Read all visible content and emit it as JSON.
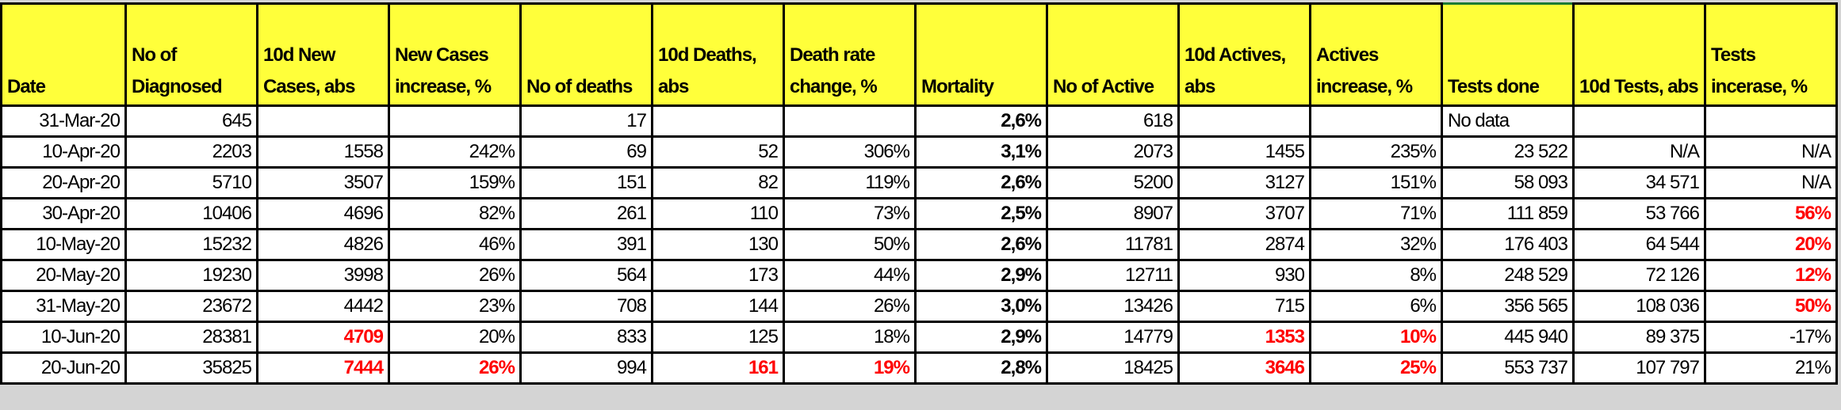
{
  "headers": [
    "Date",
    "No of Diagnosed",
    "10d New Cases, abs",
    "New Cases increase, %",
    "No of deaths",
    "10d Deaths, abs",
    "Death rate change, %",
    "Mortality",
    "No of Active",
    "10d Actives, abs",
    "Actives increase, %",
    "Tests done",
    "10d Tests, abs",
    "Tests incerase, %"
  ],
  "colors": {
    "header_bg": "#ffff3a",
    "highlight_red": "#ff0000",
    "selected_cell_border": "#1e7b34"
  },
  "rows": [
    {
      "cells": [
        "31-Mar-20",
        "645",
        "",
        "",
        "17",
        "",
        "",
        "2,6%",
        "618",
        "",
        "",
        "No data",
        "",
        ""
      ],
      "red": []
    },
    {
      "cells": [
        "10-Apr-20",
        "2203",
        "1558",
        "242%",
        "69",
        "52",
        "306%",
        "3,1%",
        "2073",
        "1455",
        "235%",
        "23 522",
        "N/A",
        "N/A"
      ],
      "red": []
    },
    {
      "cells": [
        "20-Apr-20",
        "5710",
        "3507",
        "159%",
        "151",
        "82",
        "119%",
        "2,6%",
        "5200",
        "3127",
        "151%",
        "58 093",
        "34 571",
        "N/A"
      ],
      "red": []
    },
    {
      "cells": [
        "30-Apr-20",
        "10406",
        "4696",
        "82%",
        "261",
        "110",
        "73%",
        "2,5%",
        "8907",
        "3707",
        "71%",
        "111 859",
        "53 766",
        "56%"
      ],
      "red": [
        13
      ]
    },
    {
      "cells": [
        "10-May-20",
        "15232",
        "4826",
        "46%",
        "391",
        "130",
        "50%",
        "2,6%",
        "11781",
        "2874",
        "32%",
        "176 403",
        "64 544",
        "20%"
      ],
      "red": [
        13
      ]
    },
    {
      "cells": [
        "20-May-20",
        "19230",
        "3998",
        "26%",
        "564",
        "173",
        "44%",
        "2,9%",
        "12711",
        "930",
        "8%",
        "248 529",
        "72 126",
        "12%"
      ],
      "red": [
        13
      ]
    },
    {
      "cells": [
        "31-May-20",
        "23672",
        "4442",
        "23%",
        "708",
        "144",
        "26%",
        "3,0%",
        "13426",
        "715",
        "6%",
        "356 565",
        "108 036",
        "50%"
      ],
      "red": [
        13
      ]
    },
    {
      "cells": [
        "10-Jun-20",
        "28381",
        "4709",
        "20%",
        "833",
        "125",
        "18%",
        "2,9%",
        "14779",
        "1353",
        "10%",
        "445 940",
        "89 375",
        "-17%"
      ],
      "red": [
        2,
        9,
        10
      ]
    },
    {
      "cells": [
        "20-Jun-20",
        "35825",
        "7444",
        "26%",
        "994",
        "161",
        "19%",
        "2,8%",
        "18425",
        "3646",
        "25%",
        "553 737",
        "107 797",
        "21%"
      ],
      "red": [
        2,
        3,
        5,
        6,
        9,
        10
      ]
    }
  ]
}
